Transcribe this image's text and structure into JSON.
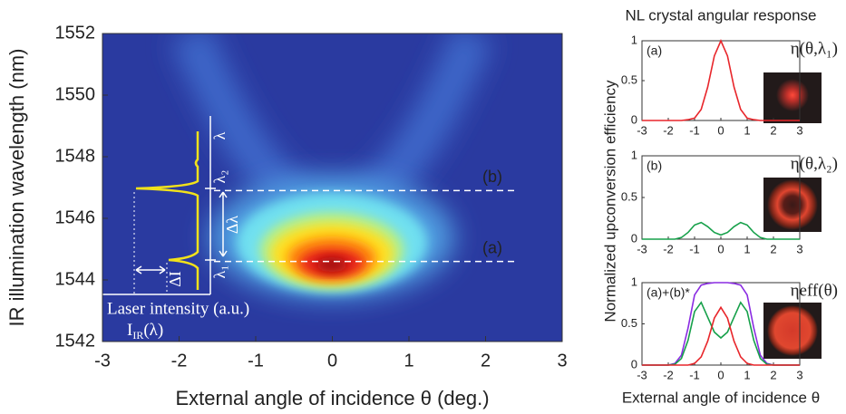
{
  "chart_data": [
    {
      "type": "heatmap",
      "xlabel": "External angle of incidence θ (deg.)",
      "ylabel": "IR illumination wavelength (nm)",
      "xlim": [
        -3,
        3
      ],
      "ylim": [
        1542,
        1552
      ],
      "xticks": [
        -3,
        -2,
        -1,
        0,
        1,
        2,
        3
      ],
      "yticks": [
        1542,
        1544,
        1546,
        1548,
        1550,
        1552
      ],
      "lines": [
        {
          "label": "(b)",
          "y": 1546.9
        },
        {
          "label": "(a)",
          "y": 1544.6
        }
      ],
      "annotations": {
        "lambda": "λ",
        "lambda2": "λ₂",
        "delta_lambda": "Δλ",
        "lambda1": "λ₁",
        "delta_i": "ΔI",
        "intensity_label": "Laser intensity (a.u.)",
        "intensity_symbol": {
          "base": "I",
          "sub": "IR",
          "arg": "(λ)"
        }
      }
    },
    {
      "type": "line",
      "title": "NL crystal angular response",
      "panel_label": "(a)",
      "xlim": [
        -3,
        3
      ],
      "ylim": [
        0,
        1
      ],
      "xticks": [
        -3,
        -2,
        -1,
        0,
        1,
        2,
        3
      ],
      "yticks": [
        0,
        0.5,
        1
      ],
      "x": [
        -3,
        -2.75,
        -2.5,
        -2.25,
        -2,
        -1.75,
        -1.5,
        -1.25,
        -1,
        -0.75,
        -0.5,
        -0.25,
        0,
        0.25,
        0.5,
        0.75,
        1,
        1.25,
        1.5,
        1.75,
        2,
        2.25,
        2.5,
        2.75,
        3
      ],
      "series": [
        {
          "name": "η(θ,λ₁)",
          "color": "#e8262b",
          "values": [
            0,
            0,
            0,
            0,
            0,
            0,
            0,
            0.01,
            0.03,
            0.14,
            0.42,
            0.81,
            1,
            0.81,
            0.42,
            0.14,
            0.03,
            0.01,
            0,
            0,
            0,
            0,
            0,
            0,
            0
          ]
        }
      ]
    },
    {
      "type": "line",
      "ylabel": "Normalized upconversion efficiency",
      "panel_label": "(b)",
      "xlim": [
        -3,
        3
      ],
      "ylim": [
        0,
        1
      ],
      "xticks": [
        -3,
        -2,
        -1,
        0,
        1,
        2,
        3
      ],
      "yticks": [
        0,
        0.5,
        1
      ],
      "x": [
        -3,
        -2.75,
        -2.5,
        -2.25,
        -2,
        -1.75,
        -1.5,
        -1.25,
        -1,
        -0.75,
        -0.5,
        -0.25,
        0,
        0.25,
        0.5,
        0.75,
        1,
        1.25,
        1.5,
        1.75,
        2,
        2.25,
        2.5,
        2.75,
        3
      ],
      "series": [
        {
          "name": "η(θ,λ₂)",
          "color": "#16a04a",
          "values": [
            0,
            0,
            0,
            0,
            0,
            0,
            0.02,
            0.08,
            0.17,
            0.2,
            0.15,
            0.08,
            0.05,
            0.08,
            0.15,
            0.2,
            0.17,
            0.08,
            0.02,
            0,
            0,
            0,
            0,
            0,
            0
          ]
        }
      ]
    },
    {
      "type": "line",
      "xlabel": "External angle of incidence θ",
      "panel_label": "(a)+(b)*",
      "xlim": [
        -3,
        3
      ],
      "ylim": [
        0,
        1
      ],
      "xticks": [
        -3,
        -2,
        -1,
        0,
        1,
        2,
        3
      ],
      "yticks": [
        0,
        0.5,
        1
      ],
      "x": [
        -3,
        -2.75,
        -2.5,
        -2.25,
        -2,
        -1.75,
        -1.5,
        -1.25,
        -1,
        -0.75,
        -0.5,
        -0.25,
        0,
        0.25,
        0.5,
        0.75,
        1,
        1.25,
        1.5,
        1.75,
        2,
        2.25,
        2.5,
        2.75,
        3
      ],
      "series": [
        {
          "name": "ηeff(θ)",
          "color": "#8a2be2",
          "values": [
            0,
            0,
            0,
            0,
            0,
            0.02,
            0.12,
            0.45,
            0.85,
            0.97,
            0.99,
            1,
            1,
            1,
            0.99,
            0.97,
            0.85,
            0.45,
            0.12,
            0.02,
            0,
            0,
            0,
            0,
            0
          ]
        },
        {
          "color": "#16a04a",
          "values": [
            0,
            0,
            0,
            0,
            0,
            0.01,
            0.08,
            0.3,
            0.65,
            0.76,
            0.58,
            0.4,
            0.33,
            0.4,
            0.58,
            0.76,
            0.65,
            0.3,
            0.08,
            0.01,
            0,
            0,
            0,
            0,
            0
          ]
        },
        {
          "color": "#e8262b",
          "values": [
            0,
            0,
            0,
            0,
            0,
            0,
            0,
            0,
            0.02,
            0.1,
            0.29,
            0.57,
            0.7,
            0.57,
            0.29,
            0.1,
            0.02,
            0,
            0,
            0,
            0,
            0,
            0,
            0,
            0
          ]
        }
      ]
    }
  ]
}
